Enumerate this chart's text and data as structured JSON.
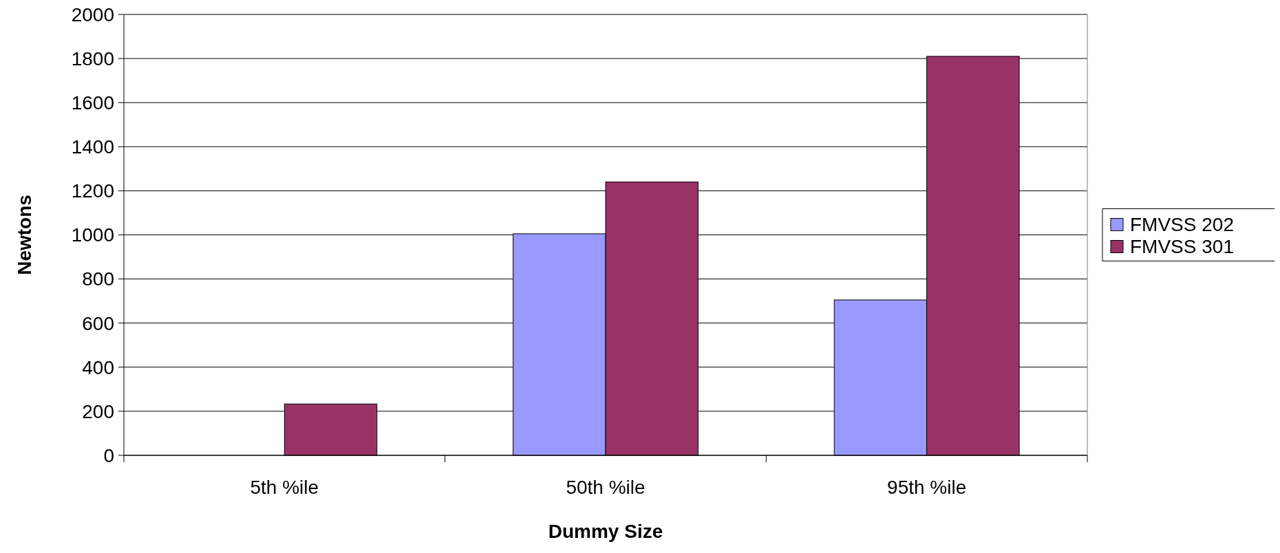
{
  "chart_data": {
    "type": "bar",
    "xlabel": "Dummy Size",
    "ylabel": "Newtons",
    "categories": [
      "5th %ile",
      "50th %ile",
      "95th %ile"
    ],
    "series": [
      {
        "name": "FMVSS 202",
        "color": "#9999ff",
        "values": [
          null,
          1005,
          705
        ]
      },
      {
        "name": "FMVSS 301",
        "color": "#993366",
        "values": [
          233,
          1240,
          1810
        ]
      }
    ],
    "ylim": [
      0,
      2000
    ],
    "yticks": [
      0,
      200,
      400,
      600,
      800,
      1000,
      1200,
      1400,
      1600,
      1800,
      2000
    ],
    "grid": "y",
    "legend": "right"
  }
}
